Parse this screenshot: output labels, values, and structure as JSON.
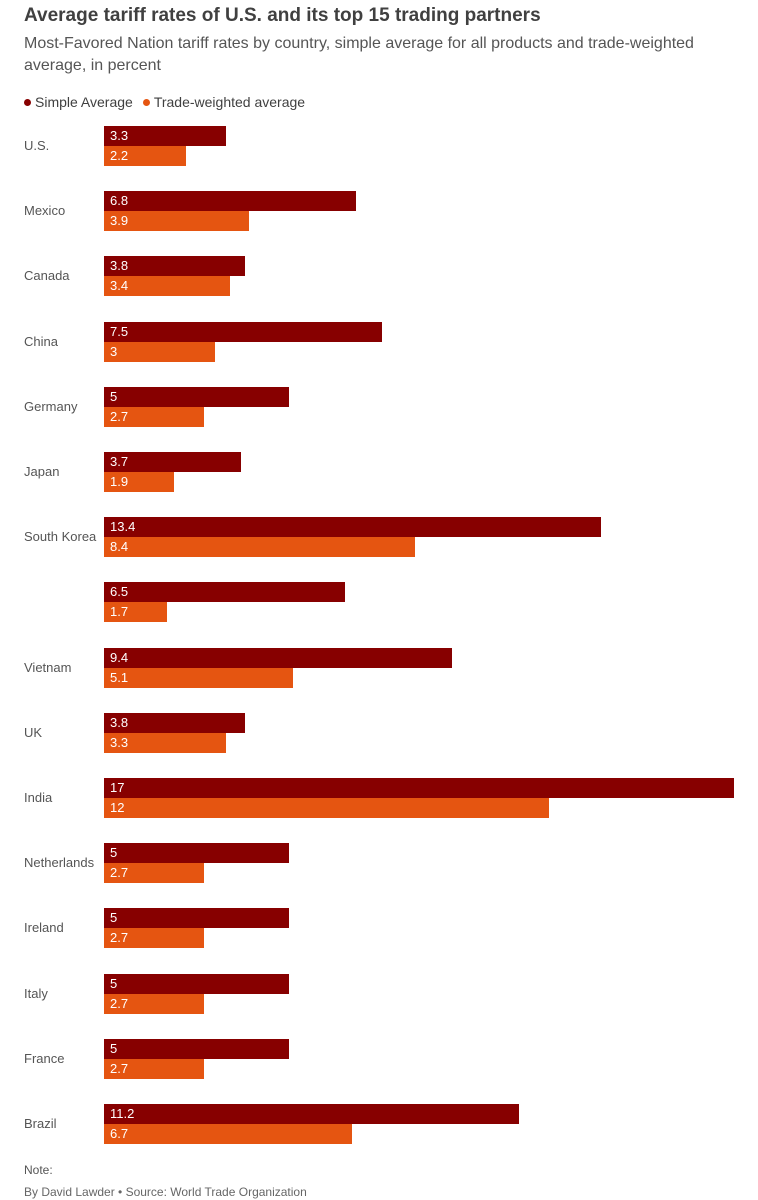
{
  "header": {
    "title": "Average tariff rates of U.S. and its top 15 trading partners",
    "subtitle": "Most-Favored Nation tariff rates by country, simple average for all products and trade-weighted average, in percent"
  },
  "footer": {
    "note": "Note:",
    "credit": "By David Lawder • Source: World Trade Organization"
  },
  "colors": {
    "simple": "#870000",
    "weighted": "#e55511"
  },
  "chart_data": {
    "type": "bar",
    "orientation": "horizontal",
    "title": "Average tariff rates of U.S. and its top 15 trading partners",
    "legend_position": "top-left",
    "categories": [
      "U.S.",
      "Mexico",
      "Canada",
      "China",
      "Germany",
      "Japan",
      "South Korea",
      "",
      "Vietnam",
      "UK",
      "India",
      "Netherlands",
      "Ireland",
      "Italy",
      "France",
      "Brazil"
    ],
    "series": [
      {
        "name": "Simple Average",
        "values": [
          3.3,
          6.8,
          3.8,
          7.5,
          5,
          3.7,
          13.4,
          6.5,
          9.4,
          3.8,
          17,
          5,
          5,
          5,
          5,
          11.2
        ]
      },
      {
        "name": "Trade-weighted average",
        "values": [
          2.2,
          3.9,
          3.4,
          3,
          2.7,
          1.9,
          8.4,
          1.7,
          5.1,
          3.3,
          12,
          2.7,
          2.7,
          2.7,
          2.7,
          6.7
        ]
      }
    ],
    "xlim": [
      0,
      17
    ],
    "grid": false
  }
}
